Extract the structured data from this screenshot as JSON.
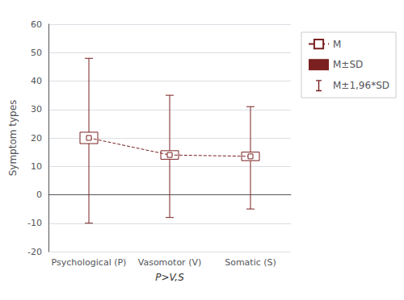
{
  "chart_data": {
    "type": "errorbar",
    "ylabel": "Symptom types",
    "categories": [
      "Psychological (P)",
      "Vasomotor (V)",
      "Somatic (S)"
    ],
    "series": [
      {
        "name": "M",
        "type": "line",
        "marker": "square",
        "line_style": "dashed",
        "values": [
          20.0,
          14.0,
          13.5
        ]
      },
      {
        "name": "M±SD",
        "type": "box",
        "low": [
          18.0,
          12.5,
          12.0
        ],
        "high": [
          22.0,
          15.5,
          15.0
        ]
      },
      {
        "name": "M±1,96*SD",
        "type": "errorbar",
        "low": [
          -10.0,
          -8.0,
          -5.0
        ],
        "high": [
          48.0,
          35.0,
          31.0
        ]
      }
    ],
    "color": "#7a2020",
    "ylim": [
      -20,
      60
    ],
    "yticks": [
      -20,
      -10,
      0,
      10,
      20,
      30,
      40,
      50,
      60
    ],
    "grid": true,
    "legend": "right",
    "annotations": [
      {
        "text": "P>V,S",
        "x": "Vasomotor (V)"
      }
    ]
  }
}
